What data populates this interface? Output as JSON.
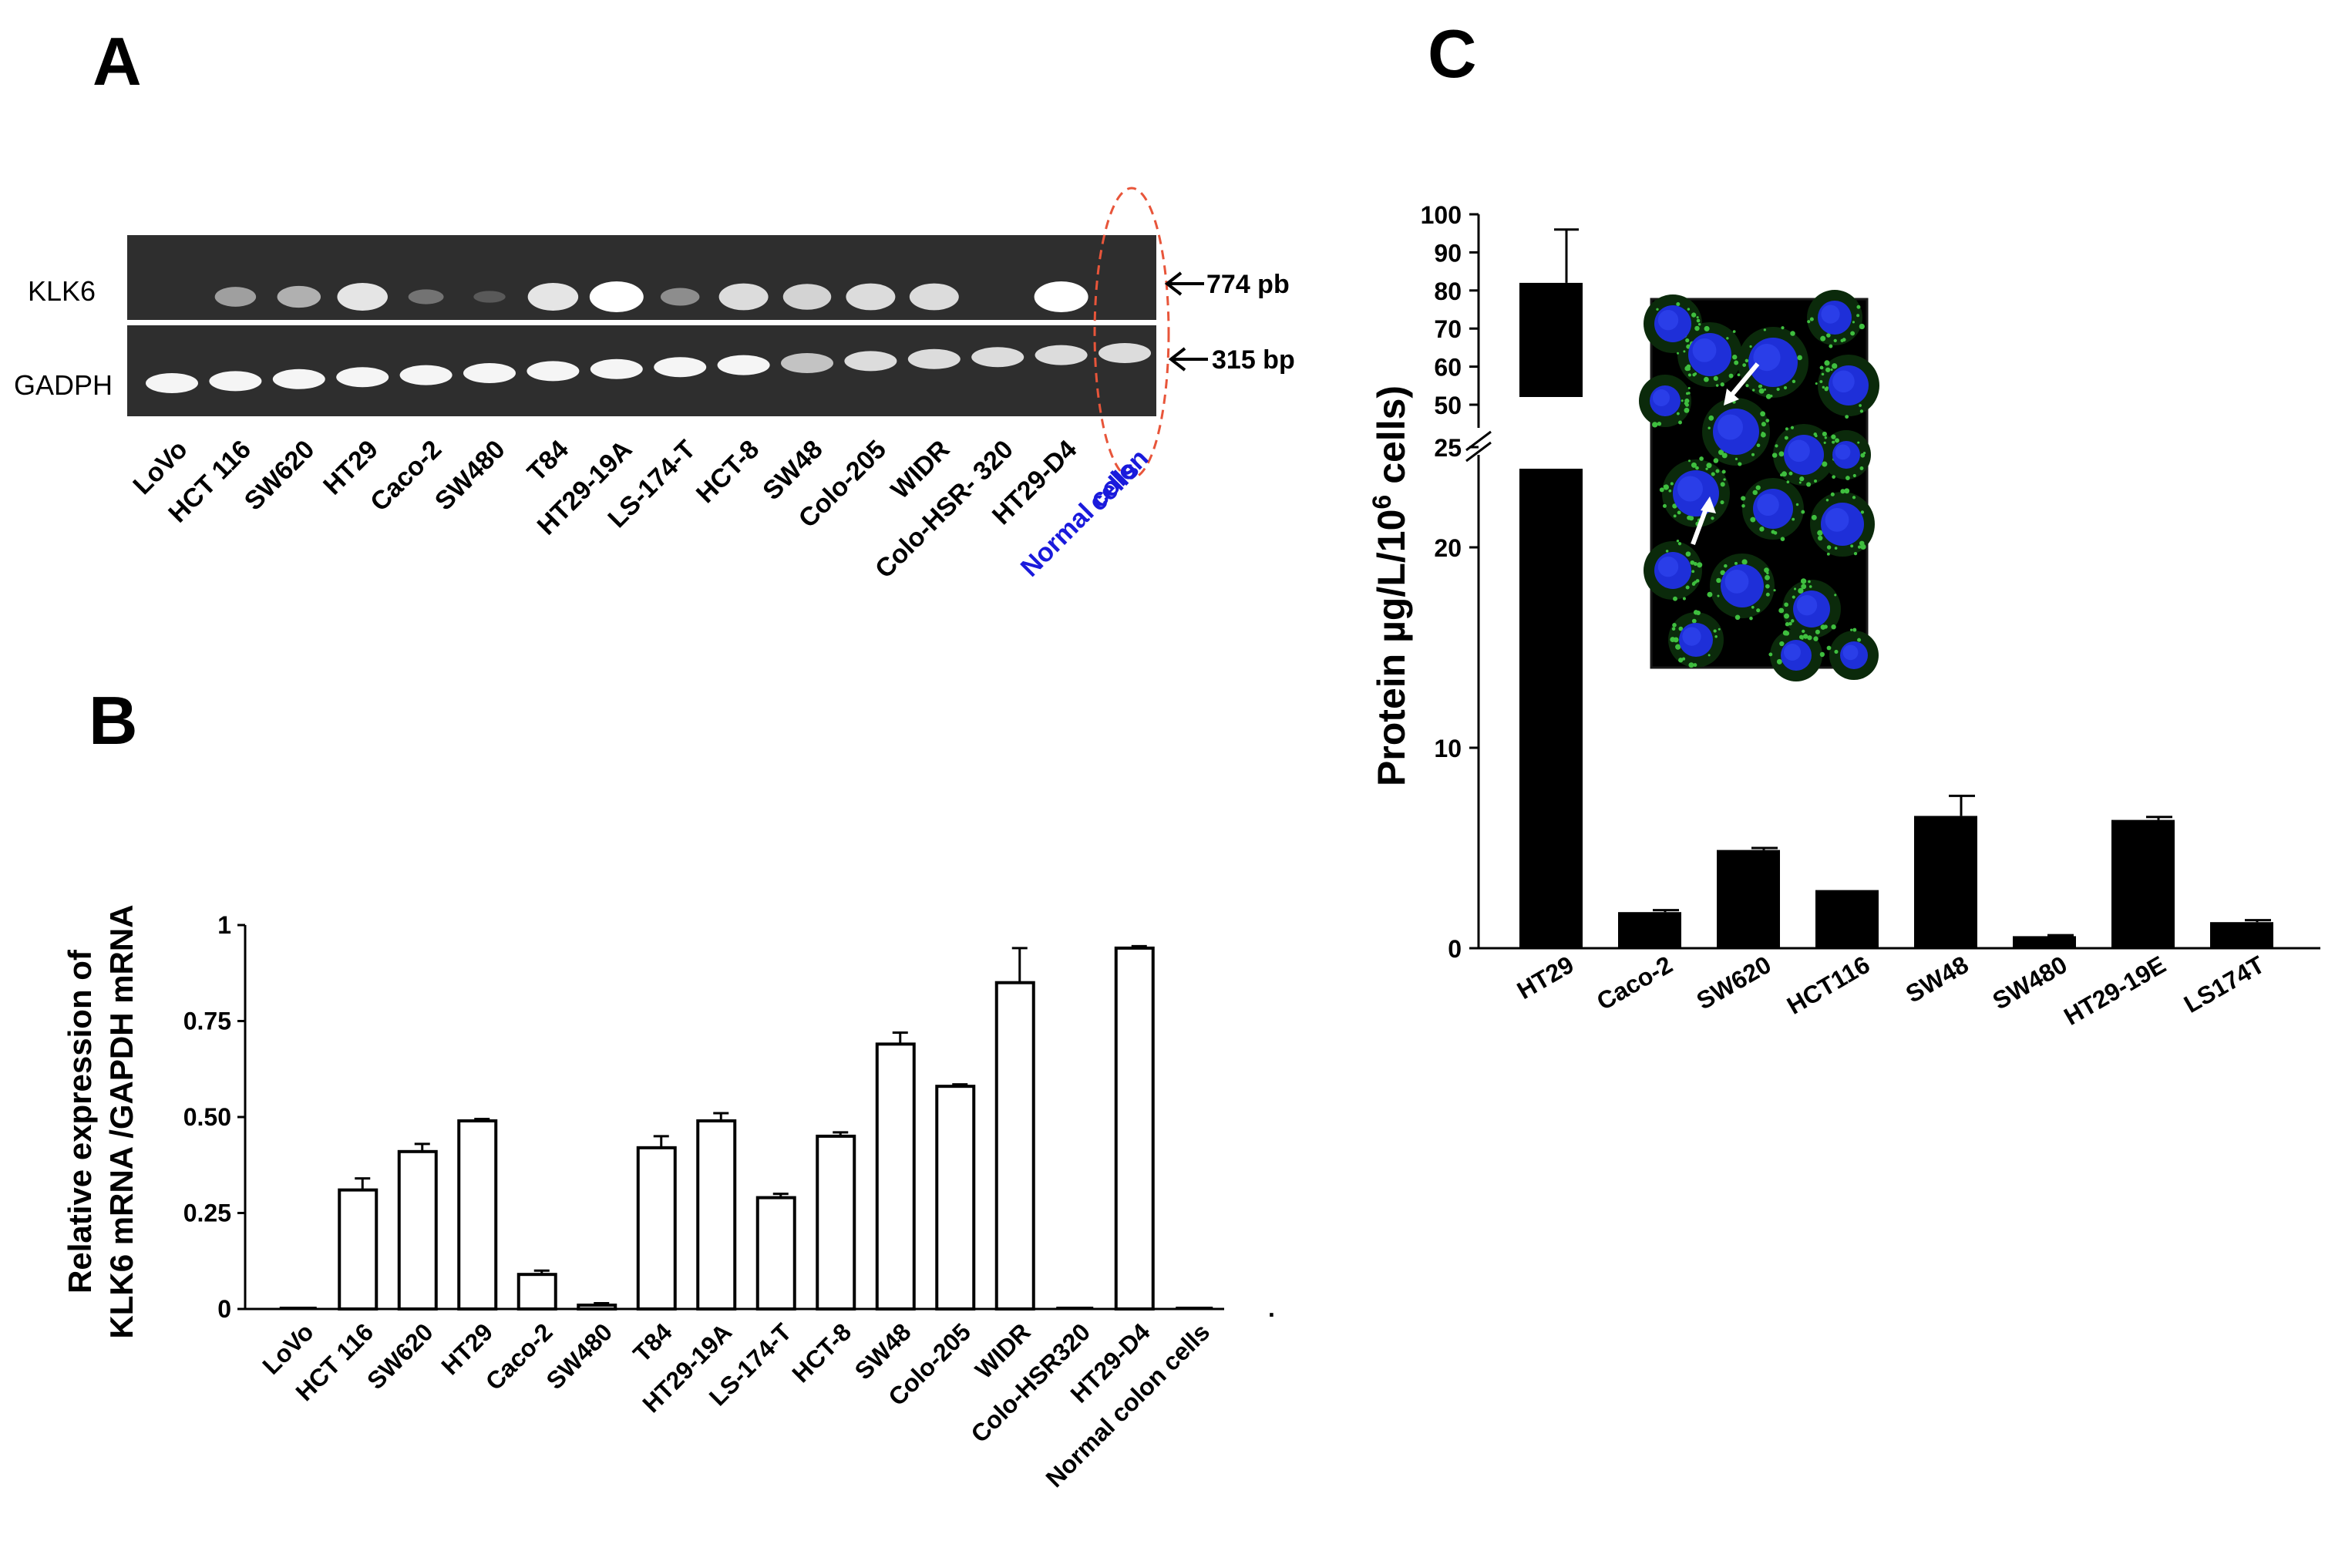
{
  "panels": {
    "A": {
      "label": "A",
      "row_labels": [
        "KLK6",
        "GADPH"
      ],
      "size_markers": [
        "774 pb",
        "315 bp"
      ],
      "lanes": [
        "LoVo",
        "HCT 116",
        "SW620",
        "HT29",
        "Caco-2",
        "SW480",
        "T84",
        "HT29-19A",
        "LS-174-T",
        "HCT-8",
        "SW48",
        "Colo-205",
        "WIDR",
        "Colo-HSR- 320",
        "HT29-D4"
      ],
      "last_lane_lines": [
        "Normal colon",
        "cells"
      ],
      "klk6_intensity": [
        0,
        0.45,
        0.55,
        0.85,
        0.2,
        0.05,
        0.85,
        1.0,
        0.35,
        0.8,
        0.75,
        0.8,
        0.8,
        0,
        1.0,
        0
      ],
      "gapdh_intensity": [
        1,
        1,
        1,
        1,
        1,
        1,
        1,
        1,
        1,
        1,
        0.6,
        0.8,
        0.8,
        0.8,
        0.8,
        0.8
      ]
    },
    "B": {
      "label": "B",
      "ylabel_lines": [
        "Relative expression of",
        "KLK6 mRNA /GAPDH mRNA"
      ],
      "yticks": [
        "0",
        "0.25",
        "0.50",
        "0.75",
        "1"
      ],
      "trailing_mark": "."
    },
    "C": {
      "label": "C",
      "ylabel": "Protein µg/L/10",
      "ylabel_sup": "6",
      "ylabel_tail": " cells)",
      "yticks_low": [
        "0",
        "10",
        "20",
        "25"
      ],
      "yticks_high": [
        "50",
        "60",
        "70",
        "80",
        "90",
        "100"
      ]
    }
  },
  "colors": {
    "klk6_band": "#ffffff",
    "gel_bg": "#2e2e2e",
    "blue_label": "#1a1adc",
    "circle": "#e8553a",
    "bar_c": "#000000",
    "nucleus": "#1e2fd8",
    "granule": "#3fbf3f"
  },
  "chart_data": [
    {
      "type": "bar",
      "title": "",
      "ylabel": "Relative expression of KLK6 mRNA /GAPDH mRNA",
      "categories": [
        "LoVo",
        "HCT 116",
        "SW620",
        "HT29",
        "Caco-2",
        "SW480",
        "T84",
        "HT29-19A",
        "LS-174-T",
        "HCT-8",
        "SW48",
        "Colo-205",
        "WIDR",
        "Colo-HSR320",
        "HT29-D4",
        "Normal colon cells"
      ],
      "values": [
        0,
        0.31,
        0.41,
        0.49,
        0.09,
        0.01,
        0.42,
        0.49,
        0.29,
        0.45,
        0.69,
        0.58,
        0.85,
        0,
        0.94,
        0
      ],
      "errors": [
        0,
        0.03,
        0.02,
        0.005,
        0.01,
        0.005,
        0.03,
        0.02,
        0.01,
        0.01,
        0.03,
        0.005,
        0.09,
        0,
        0.005,
        0
      ],
      "ylim": [
        0,
        1
      ]
    },
    {
      "type": "bar",
      "title": "",
      "ylabel": "Protein µg/L/10^6 cells)",
      "categories": [
        "HT29",
        "Caco-2",
        "SW620",
        "HCT116",
        "SW48",
        "SW480",
        "HT29-19E",
        "LS174T"
      ],
      "values": [
        82,
        1.8,
        4.9,
        2.9,
        6.6,
        0.6,
        6.4,
        1.3
      ],
      "errors": [
        14,
        0.1,
        0.1,
        0,
        1.0,
        0.05,
        0.15,
        0.1
      ],
      "ylim": [
        0,
        100
      ],
      "axis_break": [
        25,
        50
      ]
    }
  ]
}
